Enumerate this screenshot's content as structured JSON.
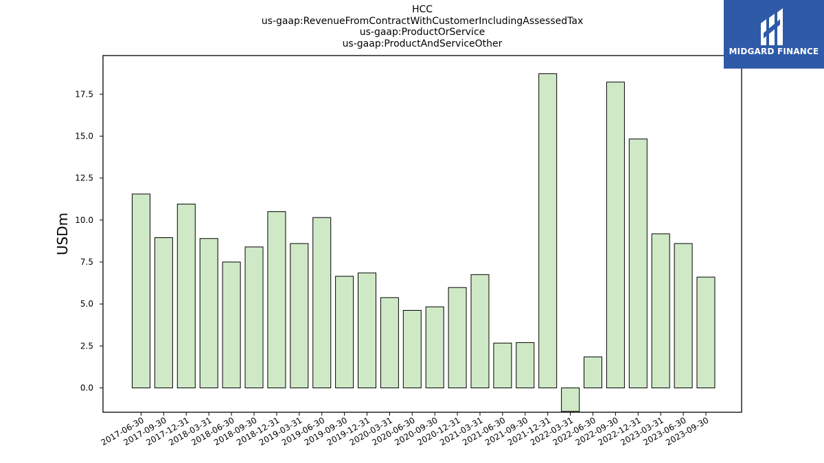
{
  "chart_data": {
    "type": "bar",
    "title_lines": [
      "HCC",
      "us-gaap:RevenueFromContractWithCustomerIncludingAssessedTax",
      "us-gaap:ProductOrService",
      "us-gaap:ProductAndServiceOther"
    ],
    "ylabel": "USDm",
    "xlabel": "",
    "categories": [
      "2017-06-30",
      "2017-09-30",
      "2017-12-31",
      "2018-03-31",
      "2018-06-30",
      "2018-09-30",
      "2018-12-31",
      "2019-03-31",
      "2019-06-30",
      "2019-09-30",
      "2019-12-31",
      "2020-03-31",
      "2020-06-30",
      "2020-09-30",
      "2020-12-31",
      "2021-03-31",
      "2021-06-30",
      "2021-09-30",
      "2021-12-31",
      "2022-03-31",
      "2022-06-30",
      "2022-09-30",
      "2022-12-31",
      "2023-03-31",
      "2023-06-30",
      "2023-09-30"
    ],
    "values": [
      11.55,
      8.95,
      10.95,
      8.9,
      7.5,
      8.4,
      10.5,
      8.6,
      10.15,
      6.65,
      6.85,
      5.38,
      4.62,
      4.83,
      5.98,
      6.75,
      2.67,
      2.7,
      18.72,
      -1.4,
      1.85,
      18.22,
      14.83,
      9.18,
      8.6,
      6.6
    ],
    "ylim": [
      -1.45,
      19.8
    ],
    "yticks": [
      0.0,
      2.5,
      5.0,
      7.5,
      10.0,
      12.5,
      15.0,
      17.5
    ],
    "ytick_labels": [
      "0.0",
      "2.5",
      "5.0",
      "7.5",
      "10.0",
      "12.5",
      "15.0",
      "17.5"
    ],
    "bar_color": "#cfe9c6",
    "grid": false
  },
  "logo": {
    "text": "MIDGARD FINANCE",
    "color": "#2e5aa8"
  }
}
